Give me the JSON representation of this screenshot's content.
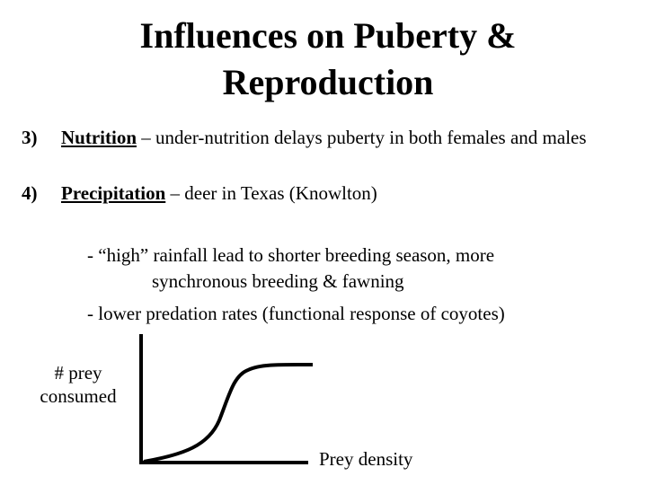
{
  "title": {
    "line1": "Influences on Puberty &",
    "line2": "Reproduction"
  },
  "items": [
    {
      "number": "3)",
      "term": "Nutrition",
      "text": " – under-nutrition delays puberty in both females and males"
    },
    {
      "number": "4)",
      "term": "Precipitation",
      "text": " – deer in Texas (Knowlton)"
    }
  ],
  "subpoints": {
    "line1": "- “high” rainfall lead to shorter breeding season, more",
    "line2": "synchronous breeding & fawning",
    "line3": "- lower predation rates (functional response of coyotes)"
  },
  "graph": {
    "ylabel_line1": "# prey",
    "ylabel_line2": "consumed",
    "xlabel": "Prey density",
    "curve": "sigmoid"
  }
}
